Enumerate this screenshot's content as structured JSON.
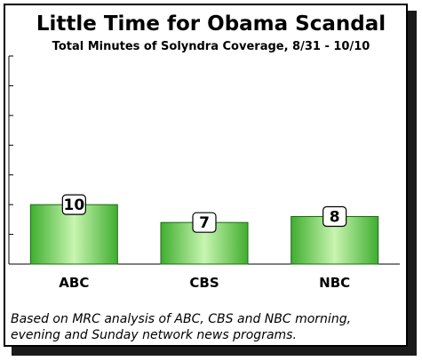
{
  "chart_data": {
    "type": "bar",
    "title": "Little Time for Obama Scandal",
    "subtitle": "Total Minutes of Solyndra Coverage, 8/31 - 10/10",
    "categories": [
      "ABC",
      "CBS",
      "NBC"
    ],
    "values": [
      10,
      7,
      8
    ],
    "ylim": [
      0,
      35
    ],
    "ytick_step": 5,
    "grid": false,
    "bar_color": "#3fae2f",
    "bar_highlight": "#c8f5b0"
  },
  "footnote": "Based on MRC analysis of ABC, CBS and NBC morning, evening and Sunday network news programs."
}
